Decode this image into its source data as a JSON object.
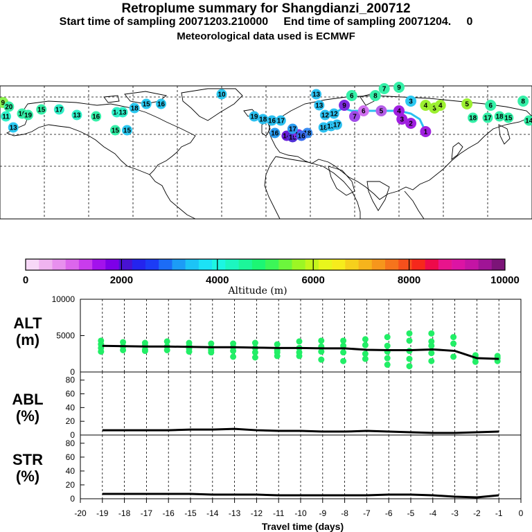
{
  "header": {
    "title": "Retroplume summary for Shangdianzi_200712",
    "subtitle": "Start time of sampling 20071203.210000     End time of sampling 20071204.     0",
    "met": "Meteorological data used is ECMWF"
  },
  "colors": {
    "scale": [
      "#f7d8f7",
      "#f0b4f0",
      "#e890ee",
      "#dc66ec",
      "#c93cec",
      "#a312ec",
      "#7d00e8",
      "#4812d2",
      "#2424ee",
      "#1c3cf6",
      "#1c6cf6",
      "#1c9cf6",
      "#1cc4f6",
      "#1ce2f6",
      "#1cf6e2",
      "#1cf6c0",
      "#1cf69a",
      "#1cf674",
      "#3cf658",
      "#6cf63c",
      "#9cf624",
      "#c4f61c",
      "#e8f61c",
      "#f6ec1c",
      "#f6d01c",
      "#f6b41c",
      "#f6961c",
      "#f6741c",
      "#f6501c",
      "#f6281c",
      "#ee0a4a",
      "#e8148c",
      "#dc14a4",
      "#c414a4",
      "#a01496",
      "#7c1478"
    ],
    "alt_points": "#22ee66",
    "trajectory": "#2bc0f0"
  },
  "map": {
    "labels": [
      {
        "t": "9",
        "lon": -178,
        "lat": 68,
        "c": "#8cf050"
      },
      {
        "t": "20",
        "lon": -174,
        "lat": 65,
        "c": "#35f0a8"
      },
      {
        "t": "11",
        "lon": -176,
        "lat": 58,
        "c": "#2ff0c8"
      },
      {
        "t": "13",
        "lon": -171,
        "lat": 50,
        "c": "#2bc8f0"
      },
      {
        "t": "16",
        "lon": -165,
        "lat": 60,
        "c": "#35f0a8"
      },
      {
        "t": "19",
        "lon": -161,
        "lat": 59,
        "c": "#35f0a8"
      },
      {
        "t": "15",
        "lon": -152,
        "lat": 63,
        "c": "#35f0a8"
      },
      {
        "t": "17",
        "lon": -140,
        "lat": 63,
        "c": "#2ff0c8"
      },
      {
        "t": "13",
        "lon": -128,
        "lat": 59,
        "c": "#2ff0c8"
      },
      {
        "t": "16",
        "lon": -115,
        "lat": 58,
        "c": "#35f0a8"
      },
      {
        "t": "14",
        "lon": -101,
        "lat": 61,
        "c": "#2ff0c8"
      },
      {
        "t": "13",
        "lon": -97,
        "lat": 61,
        "c": "#2ff0c8"
      },
      {
        "t": "18",
        "lon": -89,
        "lat": 64,
        "c": "#2bc8f0"
      },
      {
        "t": "15",
        "lon": -81,
        "lat": 67,
        "c": "#2bc8f0"
      },
      {
        "t": "16",
        "lon": -71,
        "lat": 67,
        "c": "#2bc8f0"
      },
      {
        "t": "15",
        "lon": -102,
        "lat": 48,
        "c": "#35f0a8"
      },
      {
        "t": "15",
        "lon": -94,
        "lat": 48,
        "c": "#2bc8f0"
      },
      {
        "t": "10",
        "lon": -30,
        "lat": 74,
        "c": "#2bc8f0"
      },
      {
        "t": "19",
        "lon": -8,
        "lat": 58,
        "c": "#2bc0f0"
      },
      {
        "t": "18",
        "lon": -2,
        "lat": 56,
        "c": "#2bc0f0"
      },
      {
        "t": "16",
        "lon": 4,
        "lat": 55,
        "c": "#2bc0f0"
      },
      {
        "t": "17",
        "lon": 10,
        "lat": 55,
        "c": "#2bc0f0"
      },
      {
        "t": "16",
        "lon": 6,
        "lat": 46,
        "c": "#2b9cf0"
      },
      {
        "t": "14",
        "lon": 14,
        "lat": 44,
        "c": "#6a1cd8"
      },
      {
        "t": "15",
        "lon": 18,
        "lat": 43,
        "c": "#5030d8"
      },
      {
        "t": "15",
        "lon": 22,
        "lat": 45,
        "c": "#8a2be2"
      },
      {
        "t": "18",
        "lon": 28,
        "lat": 46,
        "c": "#3a8cf0"
      },
      {
        "t": "16",
        "lon": 24,
        "lat": 44,
        "c": "#3a6cf0"
      },
      {
        "t": "17",
        "lon": 18,
        "lat": 49,
        "c": "#2b9cf0"
      },
      {
        "t": "18",
        "lon": 39,
        "lat": 50,
        "c": "#2bc0f0"
      },
      {
        "t": "12",
        "lon": 40,
        "lat": 59,
        "c": "#2bc0f0"
      },
      {
        "t": "12",
        "lon": 46,
        "lat": 60,
        "c": "#2bc0f0"
      },
      {
        "t": "13",
        "lon": 36,
        "lat": 66,
        "c": "#2bc0f0"
      },
      {
        "t": "13",
        "lon": 44,
        "lat": 51,
        "c": "#2bc0f0"
      },
      {
        "t": "17",
        "lon": 48,
        "lat": 52,
        "c": "#2bc0f0"
      },
      {
        "t": "9",
        "lon": 53,
        "lat": 66,
        "c": "#7d2be0"
      },
      {
        "t": "7",
        "lon": 60,
        "lat": 58,
        "c": "#a04ae8"
      },
      {
        "t": "6",
        "lon": 66,
        "lat": 62,
        "c": "#d070f0"
      },
      {
        "t": "5",
        "lon": 78,
        "lat": 62,
        "c": "#b45ee8"
      },
      {
        "t": "3",
        "lon": 92,
        "lat": 56,
        "c": "#a020e0"
      },
      {
        "t": "2",
        "lon": 98,
        "lat": 53,
        "c": "#a020e0"
      },
      {
        "t": "1",
        "lon": 108,
        "lat": 47,
        "c": "#a020e0"
      },
      {
        "t": "4",
        "lon": 90,
        "lat": 62,
        "c": "#a020e0"
      },
      {
        "t": "6",
        "lon": 58,
        "lat": 73,
        "c": "#35f0a8"
      },
      {
        "t": "8",
        "lon": 74,
        "lat": 73,
        "c": "#35f0a8"
      },
      {
        "t": "7",
        "lon": 80,
        "lat": 78,
        "c": "#35f0a8"
      },
      {
        "t": "3",
        "lon": 98,
        "lat": 69,
        "c": "#2bc8f0"
      },
      {
        "t": "4",
        "lon": 108,
        "lat": 66,
        "c": "#9cf030"
      },
      {
        "t": "3",
        "lon": 114,
        "lat": 64,
        "c": "#9cf030"
      },
      {
        "t": "4",
        "lon": 118,
        "lat": 66,
        "c": "#9cf030"
      },
      {
        "t": "5",
        "lon": 136,
        "lat": 67,
        "c": "#9cf030"
      },
      {
        "t": "6",
        "lon": 152,
        "lat": 66,
        "c": "#35f0a8"
      },
      {
        "t": "8",
        "lon": 174,
        "lat": 69,
        "c": "#35f0a8"
      },
      {
        "t": "18",
        "lon": 140,
        "lat": 57,
        "c": "#35f0a8"
      },
      {
        "t": "17",
        "lon": 150,
        "lat": 57,
        "c": "#35f0a8"
      },
      {
        "t": "18",
        "lon": 158,
        "lat": 58,
        "c": "#35f0a8"
      },
      {
        "t": "15",
        "lon": 164,
        "lat": 57,
        "c": "#35f0a8"
      },
      {
        "t": "14",
        "lon": 178,
        "lat": 55,
        "c": "#35f0a8"
      },
      {
        "t": "9",
        "lon": 90,
        "lat": 79,
        "c": "#35f0a8"
      },
      {
        "t": "13",
        "lon": 34,
        "lat": 74,
        "c": "#2bc0f0"
      }
    ]
  },
  "colorbar": {
    "ticks": [
      "0",
      "2000",
      "4000",
      "6000",
      "8000",
      "10000"
    ],
    "title": "Altitude (m)"
  },
  "chart_data": [
    {
      "type": "scatter",
      "panel": "ALT",
      "label": "ALT",
      "unit": "(m)",
      "yticks": [
        "0",
        "5000",
        "10000"
      ],
      "ylim": [
        0,
        10000
      ],
      "x": [
        -19,
        -18,
        -17,
        -16,
        -15,
        -14,
        -13,
        -12,
        -11,
        -10,
        -9,
        -8,
        -7,
        -6,
        -5,
        -4,
        -3,
        -2,
        -1
      ],
      "median": [
        3600,
        3550,
        3500,
        3500,
        3450,
        3400,
        3400,
        3350,
        3300,
        3300,
        3250,
        3250,
        3050,
        3000,
        3000,
        3100,
        2900,
        1900,
        1800
      ],
      "points": [
        [
          -19,
          4300
        ],
        [
          -19,
          3800
        ],
        [
          -19,
          3300
        ],
        [
          -19,
          2800
        ],
        [
          -18,
          4100
        ],
        [
          -18,
          3500
        ],
        [
          -18,
          3000
        ],
        [
          -17,
          4000
        ],
        [
          -17,
          3600
        ],
        [
          -17,
          3100
        ],
        [
          -17,
          2900
        ],
        [
          -16,
          4200
        ],
        [
          -16,
          3500
        ],
        [
          -16,
          3000
        ],
        [
          -15,
          4000
        ],
        [
          -15,
          3600
        ],
        [
          -15,
          3200
        ],
        [
          -15,
          2800
        ],
        [
          -14,
          3900
        ],
        [
          -14,
          3300
        ],
        [
          -14,
          3000
        ],
        [
          -14,
          2700
        ],
        [
          -13,
          3900
        ],
        [
          -13,
          3400
        ],
        [
          -13,
          2900
        ],
        [
          -13,
          2100
        ],
        [
          -12,
          4000
        ],
        [
          -12,
          3300
        ],
        [
          -12,
          2700
        ],
        [
          -12,
          2000
        ],
        [
          -11,
          3800
        ],
        [
          -11,
          3000
        ],
        [
          -11,
          2700
        ],
        [
          -11,
          2200
        ],
        [
          -10,
          4200
        ],
        [
          -10,
          3300
        ],
        [
          -10,
          2700
        ],
        [
          -10,
          2200
        ],
        [
          -9,
          4300
        ],
        [
          -9,
          3500
        ],
        [
          -9,
          2800
        ],
        [
          -9,
          1700
        ],
        [
          -8,
          4300
        ],
        [
          -8,
          3600
        ],
        [
          -8,
          2700
        ],
        [
          -8,
          1500
        ],
        [
          -7,
          4500
        ],
        [
          -7,
          3700
        ],
        [
          -7,
          2500
        ],
        [
          -7,
          1800
        ],
        [
          -6,
          4800
        ],
        [
          -6,
          3600
        ],
        [
          -6,
          2800
        ],
        [
          -6,
          1900
        ],
        [
          -6,
          1000
        ],
        [
          -5,
          5300
        ],
        [
          -5,
          4300
        ],
        [
          -5,
          2900
        ],
        [
          -5,
          1800
        ],
        [
          -5,
          800
        ],
        [
          -4,
          5300
        ],
        [
          -4,
          4200
        ],
        [
          -4,
          3600
        ],
        [
          -4,
          2600
        ],
        [
          -4,
          1500
        ],
        [
          -3,
          4800
        ],
        [
          -3,
          3900
        ],
        [
          -3,
          2100
        ],
        [
          -2,
          2300
        ],
        [
          -2,
          1900
        ],
        [
          -2,
          1400
        ],
        [
          -1,
          2200
        ],
        [
          -1,
          1900
        ],
        [
          -1,
          1500
        ]
      ]
    },
    {
      "type": "line",
      "panel": "ABL",
      "label": "ABL",
      "unit": "(%)",
      "yticks": [
        "0",
        "20",
        "40",
        "60",
        "80"
      ],
      "ylim": [
        0,
        90
      ],
      "x": [
        -19,
        -18,
        -17,
        -16,
        -15,
        -14,
        -13,
        -12,
        -11,
        -10,
        -9,
        -8,
        -7,
        -6,
        -5,
        -4,
        -3,
        -2,
        -1
      ],
      "values": [
        7,
        7,
        7,
        7,
        8,
        8,
        9,
        7,
        6,
        6,
        5,
        5,
        6,
        5,
        4,
        3,
        3,
        4,
        5
      ]
    },
    {
      "type": "line",
      "panel": "STR",
      "label": "STR",
      "unit": "(%)",
      "yticks": [
        "0",
        "20",
        "40",
        "60",
        "80"
      ],
      "ylim": [
        0,
        90
      ],
      "x": [
        -19,
        -18,
        -17,
        -16,
        -15,
        -14,
        -13,
        -12,
        -11,
        -10,
        -9,
        -8,
        -7,
        -6,
        -5,
        -4,
        -3,
        -2,
        -1
      ],
      "values": [
        7,
        7,
        7,
        7,
        7,
        6,
        6,
        6,
        5,
        5,
        5,
        5,
        5,
        6,
        6,
        5,
        3,
        2,
        5
      ]
    }
  ],
  "xaxis": {
    "ticks": [
      "-20",
      "-19",
      "-18",
      "-17",
      "-16",
      "-15",
      "-14",
      "-13",
      "-12",
      "-11",
      "-10",
      "-9",
      "-8",
      "-7",
      "-6",
      "-5",
      "-4",
      "-3",
      "-2",
      "-1",
      "0"
    ],
    "label": "Travel time (days)"
  }
}
